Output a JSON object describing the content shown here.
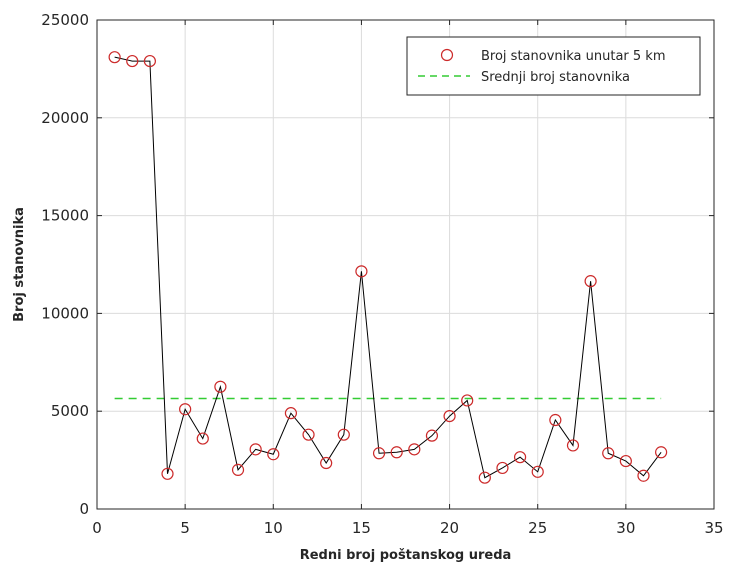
{
  "chart_data": {
    "type": "line",
    "title": "",
    "xlabel": "Redni broj poštanskog ureda",
    "ylabel": "Broj stanovnika",
    "xlim": [
      0,
      35
    ],
    "ylim": [
      0,
      25000
    ],
    "xticks": [
      0,
      5,
      10,
      15,
      20,
      25,
      30,
      35
    ],
    "yticks": [
      0,
      5000,
      10000,
      15000,
      20000,
      25000
    ],
    "grid": true,
    "legend_position": "top-right",
    "series": [
      {
        "name": "Broj stanovnika unutar 5 km",
        "marker": "circle",
        "marker_color": "#cc2a2a",
        "line_color": "#000000",
        "x": [
          1,
          2,
          3,
          4,
          5,
          6,
          7,
          8,
          9,
          10,
          11,
          12,
          13,
          14,
          15,
          16,
          17,
          18,
          19,
          20,
          21,
          22,
          23,
          24,
          25,
          26,
          27,
          28,
          29,
          30,
          31,
          32
        ],
        "y": [
          23100,
          22900,
          22900,
          1800,
          5100,
          3600,
          6250,
          2000,
          3050,
          2800,
          4900,
          3800,
          2350,
          3800,
          12150,
          2850,
          2900,
          3050,
          3750,
          4750,
          5550,
          1600,
          2100,
          2650,
          1900,
          4550,
          3250,
          11650,
          2850,
          2450,
          1700,
          2900
        ]
      },
      {
        "name": "Srednji broj stanovnika",
        "style": "dashed",
        "line_color": "#33cc33",
        "x": [
          1,
          32
        ],
        "y": [
          5650,
          5650
        ]
      }
    ]
  }
}
